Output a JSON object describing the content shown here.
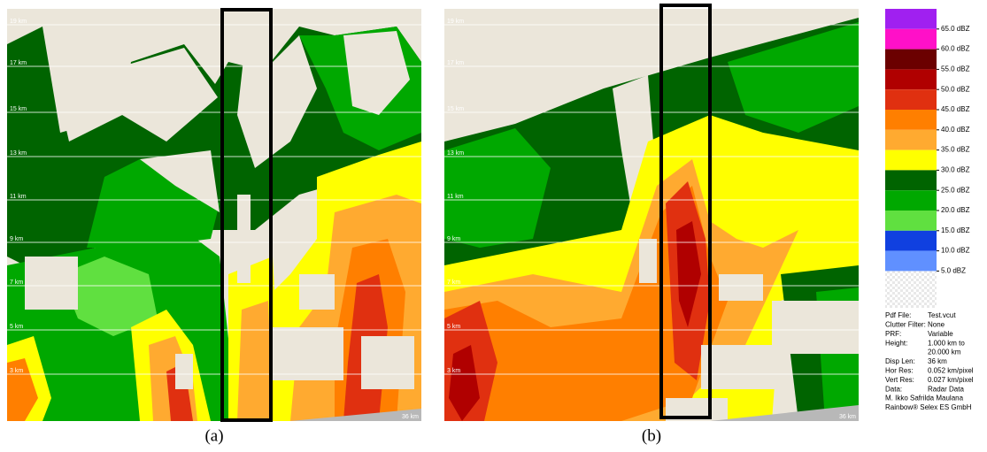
{
  "panels": [
    {
      "label": "(a)",
      "height_labels": [
        "19 km",
        "17 km",
        "15 km",
        "13 km",
        "11 km",
        "9 km",
        "7 km",
        "5 km",
        "3 km"
      ],
      "distance_label": "36 km"
    },
    {
      "label": "(b)",
      "height_labels": [
        "19 km",
        "17 km",
        "15 km",
        "13 km",
        "11 km",
        "9 km",
        "7 km",
        "5 km",
        "3 km"
      ],
      "distance_label": "36 km"
    }
  ],
  "legend": {
    "items": [
      {
        "label": "65.0 dBZ",
        "color": "#a020f0"
      },
      {
        "label": "60.0 dBZ",
        "color": "#ff10c8"
      },
      {
        "label": "55.0 dBZ",
        "color": "#6b0000"
      },
      {
        "label": "50.0 dBZ",
        "color": "#b00000"
      },
      {
        "label": "45.0 dBZ",
        "color": "#e03010"
      },
      {
        "label": "40.0 dBZ",
        "color": "#ff7f00"
      },
      {
        "label": "35.0 dBZ",
        "color": "#ffaa30"
      },
      {
        "label": "30.0 dBZ",
        "color": "#ffff00"
      },
      {
        "label": "25.0 dBZ",
        "color": "#006400"
      },
      {
        "label": "20.0 dBZ",
        "color": "#00a800"
      },
      {
        "label": "15.0 dBZ",
        "color": "#60e040"
      },
      {
        "label": "10.0 dBZ",
        "color": "#1040e0"
      },
      {
        "label": "5.0 dBZ",
        "color": "#6090ff"
      }
    ]
  },
  "info": {
    "rows": [
      [
        "Pdf File:",
        "Test.vcut"
      ],
      [
        "Clutter Filter:",
        "None"
      ],
      [
        "PRF:",
        "Variable"
      ],
      [
        "Height:",
        "1.000 km to"
      ],
      [
        "",
        "20.000 km"
      ],
      [
        "Disp Len:",
        "36 km"
      ],
      [
        "Hor Res:",
        "0.052 km/pixel"
      ],
      [
        "Vert Res:",
        "0.027 km/pixel"
      ],
      [
        "Data:",
        "Radar Data"
      ]
    ],
    "credits": [
      "M. Ikko Safrilda Maulana",
      "Rainbow® Selex ES GmbH"
    ]
  }
}
